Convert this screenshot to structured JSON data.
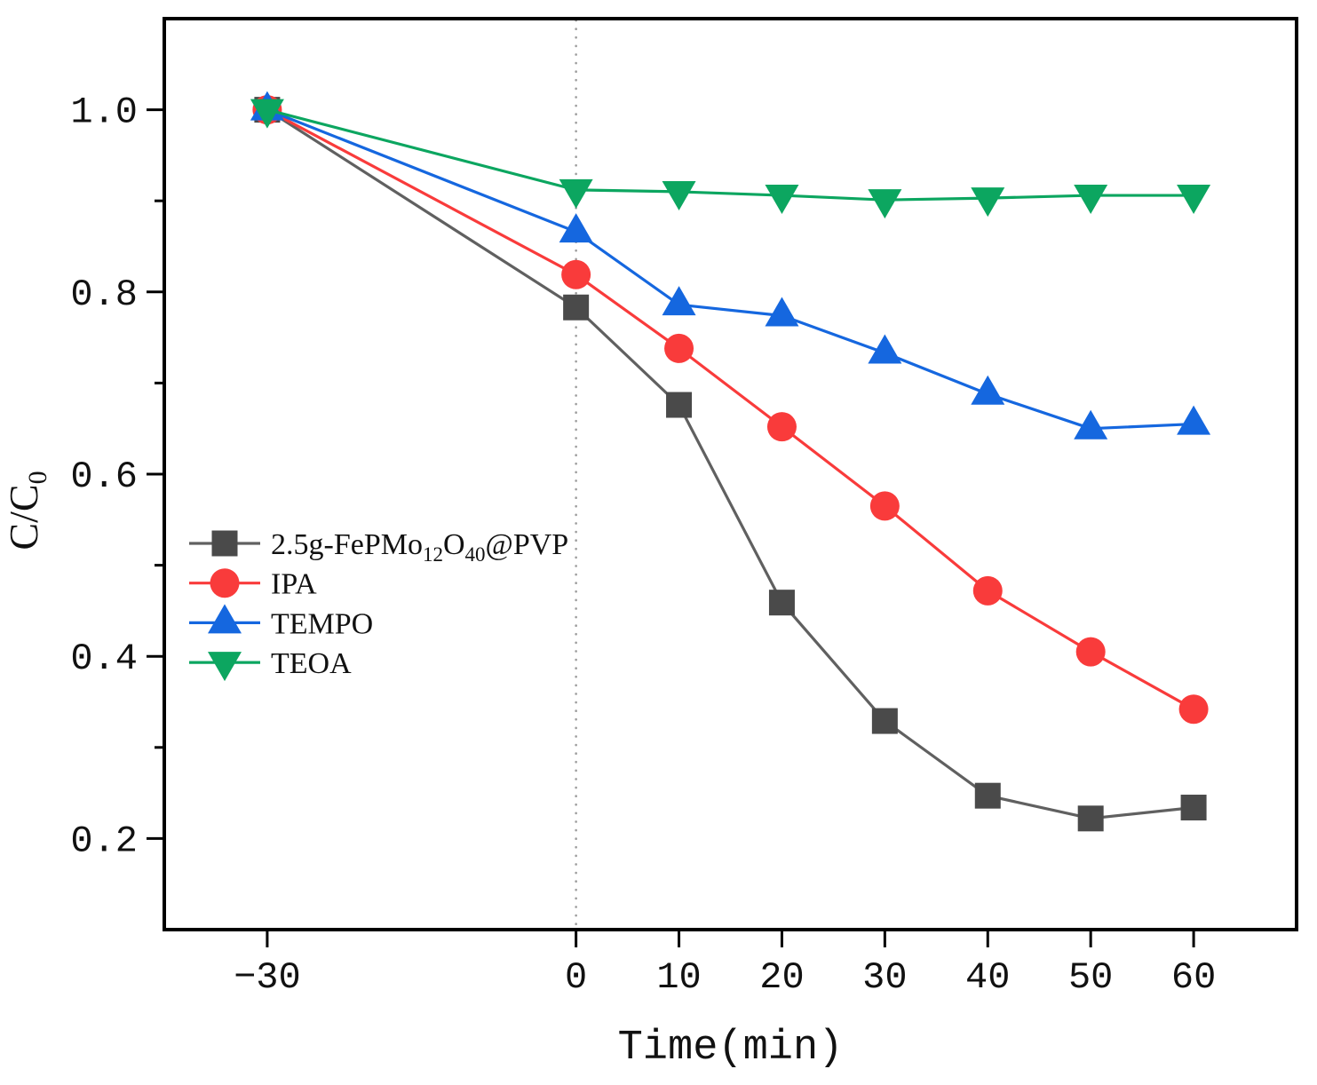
{
  "figure": {
    "background": "#FFFFFF",
    "frame_color": "#000000"
  },
  "chart_data": {
    "type": "line",
    "title": "",
    "xlabel": "Time(min)",
    "ylabel": "C/C0",
    "ylabel_parts": [
      {
        "t": "C/C",
        "sub": false
      },
      {
        "t": "0",
        "sub": true
      }
    ],
    "x": [
      -30,
      0,
      10,
      20,
      30,
      40,
      50,
      60
    ],
    "series": [
      {
        "name": "2.5g-FePMo12O40@PVP",
        "label_parts": [
          {
            "t": "2.5g-FePMo",
            "sub": false
          },
          {
            "t": "12",
            "sub": true
          },
          {
            "t": "O",
            "sub": false
          },
          {
            "t": "40",
            "sub": true
          },
          {
            "t": "@PVP",
            "sub": false
          }
        ],
        "marker": "square",
        "marker_color": "#4A4A4A",
        "line_color": "#606060",
        "values": [
          1.0,
          0.783,
          0.676,
          0.459,
          0.329,
          0.247,
          0.222,
          0.234
        ]
      },
      {
        "name": "IPA",
        "label_parts": [
          {
            "t": "IPA",
            "sub": false
          }
        ],
        "marker": "circle",
        "marker_color": "#F93B3B",
        "line_color": "#F93B3B",
        "values": [
          1.0,
          0.819,
          0.738,
          0.652,
          0.565,
          0.472,
          0.405,
          0.342
        ]
      },
      {
        "name": "TEMPO",
        "label_parts": [
          {
            "t": "TEMPO",
            "sub": false
          }
        ],
        "marker": "triangle-up",
        "marker_color": "#1567DF",
        "line_color": "#1567DF",
        "values": [
          1.0,
          0.866,
          0.786,
          0.774,
          0.733,
          0.688,
          0.65,
          0.655
        ]
      },
      {
        "name": "TEOA",
        "label_parts": [
          {
            "t": "TEOA",
            "sub": false
          }
        ],
        "marker": "triangle-down",
        "marker_color": "#0CA660",
        "line_color": "#0CA660",
        "values": [
          1.0,
          0.912,
          0.91,
          0.906,
          0.901,
          0.903,
          0.906,
          0.906
        ]
      }
    ],
    "xlim": [
      -40,
      70
    ],
    "ylim": [
      0.1,
      1.1
    ],
    "x_ticks": {
      "values": [
        -30,
        0,
        10,
        20,
        30,
        40,
        50,
        60
      ],
      "labels": [
        "−30",
        "0",
        "10",
        "20",
        "30",
        "40",
        "50",
        "60"
      ]
    },
    "y_ticks": {
      "values": [
        0.2,
        0.4,
        0.6,
        0.8,
        1.0
      ],
      "labels": [
        "0.2",
        "0.4",
        "0.6",
        "0.8",
        "1.0"
      ]
    },
    "y_minor_ticks": [
      0.3,
      0.5,
      0.7,
      0.9
    ],
    "grid": false,
    "reference_line": {
      "x": 0,
      "style": "dotted",
      "color": "#9E9E9E"
    },
    "legend": {
      "position": "center-left",
      "entries": [
        "2.5g-FePMo12O40@PVP",
        "IPA",
        "TEMPO",
        "TEOA"
      ]
    }
  }
}
